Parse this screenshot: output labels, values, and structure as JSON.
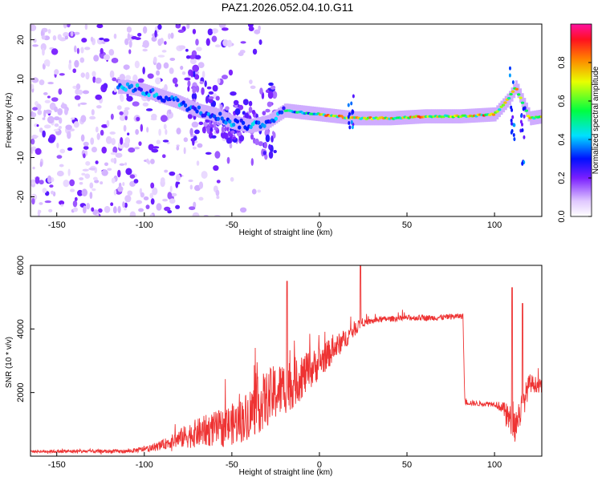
{
  "chart_data": [
    {
      "type": "heatmap",
      "title": "PAZ1.2026.052.04.10.G11",
      "xlabel": "Height of straight line (km)",
      "ylabel": "Frequency (Hz)",
      "xlim": [
        -165,
        127
      ],
      "ylim": [
        -25,
        24
      ],
      "x_ticks": [
        -150,
        -100,
        -50,
        0,
        50,
        100
      ],
      "x_tick_labels": [
        "-150",
        "-100",
        "-50",
        "0",
        "50",
        "100"
      ],
      "y_ticks": [
        -20,
        -10,
        0,
        10,
        20
      ],
      "y_tick_labels": [
        "-20",
        "-10",
        "0",
        "10",
        "20"
      ],
      "colorbar": {
        "label": "Normalized spectral amplitude",
        "range": [
          0,
          1
        ],
        "ticks": [
          0.0,
          0.2,
          0.4,
          0.6,
          0.8
        ],
        "tick_labels": [
          "0.0",
          "0.2",
          "0.4",
          "0.6",
          "0.8"
        ]
      },
      "ridge": {
        "description_points_x": [
          -110,
          -100,
          -90,
          -80,
          -70,
          -60,
          -50,
          -40,
          -30,
          -20,
          -10,
          0,
          20,
          40,
          60,
          80,
          100,
          108,
          112,
          120,
          127
        ],
        "description_points_freq": [
          8,
          7,
          5.5,
          4,
          2,
          1,
          -1,
          -2,
          -1,
          2,
          1.5,
          1,
          0,
          0,
          0.5,
          0.5,
          1,
          5,
          8,
          0,
          0.5
        ],
        "peak_amplitude": 0.95
      }
    },
    {
      "type": "line",
      "title": "",
      "xlabel": "Height of straight line (km)",
      "ylabel": "SNR (10 * v/v)",
      "xlim": [
        -165,
        127
      ],
      "ylim": [
        0,
        6000
      ],
      "x_ticks": [
        -150,
        -100,
        -50,
        0,
        50,
        100
      ],
      "x_tick_labels": [
        "-150",
        "-100",
        "-50",
        "0",
        "50",
        "100"
      ],
      "y_ticks": [
        2000,
        4000,
        6000
      ],
      "y_tick_labels": [
        "2000",
        "4000",
        "6000"
      ],
      "color": "#ee3333",
      "series": [
        {
          "name": "SNR",
          "x": [
            -165,
            -140,
            -110,
            -95,
            -85,
            -75,
            -65,
            -55,
            -45,
            -35,
            -25,
            -15,
            -5,
            5,
            15,
            20,
            24,
            26,
            35,
            50,
            65,
            80,
            82,
            83,
            90,
            100,
            105,
            108,
            112,
            116,
            120,
            127
          ],
          "y": [
            150,
            150,
            150,
            250,
            450,
            650,
            800,
            900,
            1100,
            1600,
            2000,
            2300,
            2700,
            3200,
            3700,
            4000,
            4200,
            4200,
            4300,
            4350,
            4350,
            4400,
            4400,
            1700,
            1650,
            1650,
            1500,
            1200,
            1000,
            1600,
            2300,
            2200
          ],
          "noise": [
            40,
            60,
            60,
            100,
            200,
            400,
            500,
            600,
            700,
            900,
            900,
            800,
            600,
            450,
            300,
            250,
            150,
            100,
            90,
            90,
            90,
            90,
            90,
            90,
            80,
            80,
            200,
            450,
            500,
            500,
            300,
            200
          ]
        }
      ],
      "spikes": [
        {
          "x": -18.5,
          "y": 5500
        },
        {
          "x": 23.5,
          "y": 6000
        },
        {
          "x": 110,
          "y": 5300
        },
        {
          "x": 116,
          "y": 4800
        }
      ]
    }
  ]
}
